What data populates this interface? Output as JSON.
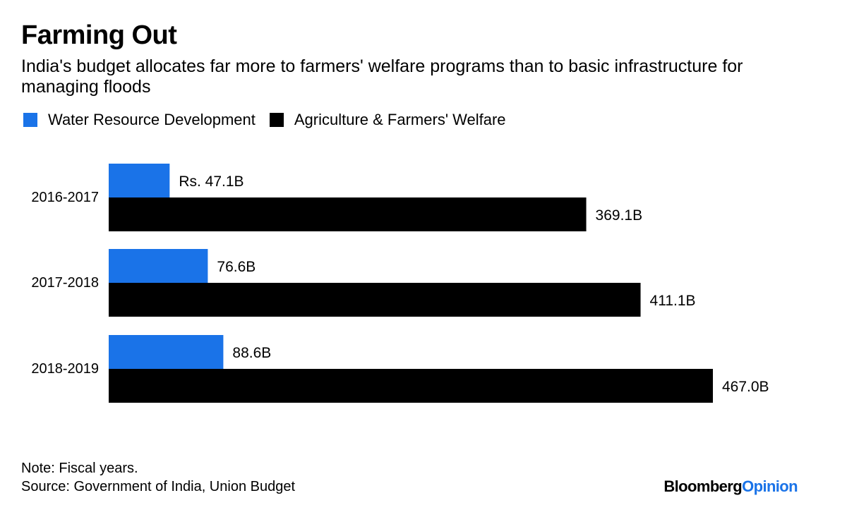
{
  "header": {
    "title": "Farming Out",
    "subtitle": "India's budget allocates far more to farmers' welfare programs than to basic infrastructure for managing floods"
  },
  "footer": {
    "note": "Note: Fiscal years.",
    "source": "Source: Government of India, Union Budget",
    "brand_part1": "Bloomberg",
    "brand_part2": "Opinion",
    "brand_color_1": "#000000",
    "brand_color_2": "#1a73e8"
  },
  "chart_data": {
    "type": "bar",
    "orientation": "horizontal",
    "categories": [
      "2016-2017",
      "2017-2018",
      "2018-2019"
    ],
    "series": [
      {
        "name": "Water Resource Development",
        "color": "#1a73e8",
        "values": [
          47.1,
          76.6,
          88.6
        ],
        "labels": [
          "Rs. 47.1B",
          "76.6B",
          "88.6B"
        ]
      },
      {
        "name": "Agriculture & Farmers' Welfare",
        "color": "#000000",
        "values": [
          369.1,
          411.1,
          467.0
        ],
        "labels": [
          "369.1B",
          "411.1B",
          "467.0B"
        ]
      }
    ],
    "xlim": [
      0,
      500
    ],
    "grid": false,
    "legend_position": "top-left"
  }
}
